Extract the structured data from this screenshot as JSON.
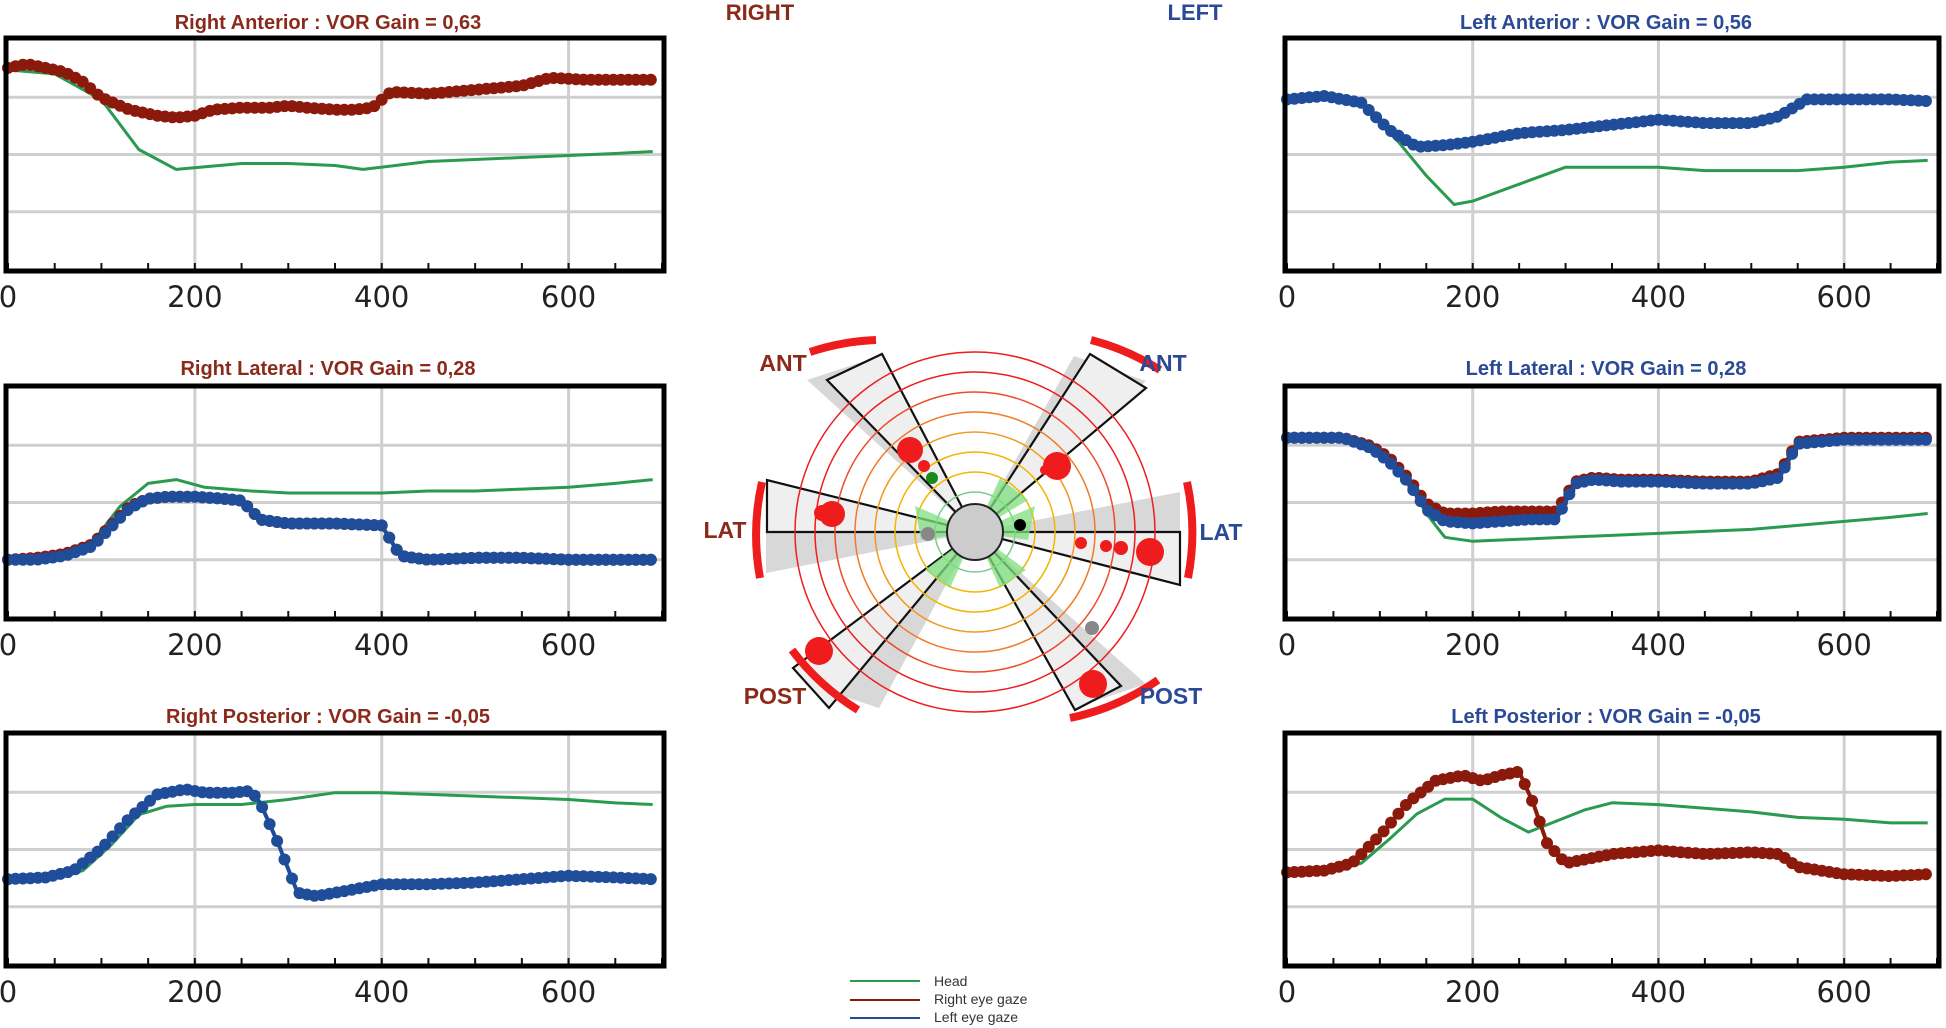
{
  "colors": {
    "head": "#2a9a4f",
    "right_eye": "#8b1a0c",
    "left_eye": "#1f4d9a",
    "right_title": "#8b2a1a",
    "left_title": "#2b4a96",
    "grid": "#cfcfcf",
    "polar_red": "#ee1c1c"
  },
  "labels": {
    "right": "RIGHT",
    "left": "LEFT"
  },
  "polar": {
    "ant_right": "ANT",
    "ant_left": "ANT",
    "lat_right": "LAT",
    "lat_left": "LAT",
    "post_right": "POST",
    "post_left": "POST"
  },
  "legend": {
    "head": "Head",
    "right_eye": "Right eye gaze",
    "left_eye": "Left eye gaze"
  },
  "chart_data": [
    {
      "type": "line",
      "panel": "right-anterior",
      "title": "Right Anterior : VOR Gain = 0,63",
      "xlim": [
        0,
        700
      ],
      "ylim": [
        -100,
        15
      ],
      "xticks": [
        0,
        200,
        400,
        600
      ],
      "series": [
        {
          "name": "Head",
          "x": [
            0,
            50,
            100,
            140,
            180,
            250,
            300,
            350,
            380,
            450,
            500,
            550,
            600,
            650,
            690
          ],
          "y": [
            0,
            -2,
            -15,
            -40,
            -50,
            -47,
            -47,
            -48,
            -50,
            -46,
            -45,
            -44,
            -43,
            -42,
            -41
          ]
        },
        {
          "name": "Right eye gaze",
          "x": [
            0,
            20,
            40,
            60,
            80,
            100,
            130,
            160,
            180,
            200,
            220,
            250,
            280,
            300,
            320,
            350,
            370,
            390,
            410,
            450,
            500,
            550,
            580,
            620,
            650,
            690
          ],
          "y": [
            1,
            3,
            1,
            -1,
            -6,
            -14,
            -20,
            -23,
            -24,
            -23,
            -20,
            -19,
            -19,
            -18,
            -19,
            -20,
            -20,
            -19,
            -11,
            -12,
            -10,
            -8,
            -4,
            -5,
            -5,
            -5
          ]
        }
      ]
    },
    {
      "type": "line",
      "panel": "right-lateral",
      "title": "Right Lateral : VOR Gain = 0,28",
      "xlim": [
        0,
        700
      ],
      "ylim": [
        -30,
        90
      ],
      "xticks": [
        0,
        200,
        400,
        600
      ],
      "series": [
        {
          "name": "Head",
          "x": [
            0,
            30,
            60,
            90,
            120,
            150,
            180,
            210,
            260,
            300,
            350,
            400,
            450,
            500,
            550,
            600,
            650,
            690
          ],
          "y": [
            0,
            1,
            3,
            9,
            28,
            40,
            42,
            38,
            36,
            35,
            35,
            35,
            36,
            36,
            37,
            38,
            40,
            42
          ]
        },
        {
          "name": "Right eye gaze",
          "x": [
            0,
            30,
            60,
            90,
            110,
            130,
            150,
            170,
            200,
            230,
            250,
            270,
            300,
            350,
            400,
            420,
            450,
            500,
            550,
            600,
            650,
            690
          ],
          "y": [
            0,
            1,
            3,
            8,
            18,
            28,
            32,
            33,
            33,
            32,
            31,
            21,
            19,
            19,
            18,
            2,
            0,
            1,
            1,
            0,
            0,
            0
          ]
        },
        {
          "name": "Left eye gaze",
          "x": [
            0,
            30,
            60,
            90,
            110,
            130,
            150,
            170,
            200,
            230,
            250,
            270,
            300,
            350,
            400,
            420,
            450,
            500,
            550,
            600,
            650,
            690
          ],
          "y": [
            0,
            0,
            2,
            7,
            17,
            27,
            32,
            33,
            33,
            32,
            31,
            21,
            19,
            19,
            18,
            2,
            0,
            1,
            1,
            0,
            0,
            0
          ]
        }
      ]
    },
    {
      "type": "line",
      "panel": "right-posterior",
      "title": "Right Posterior : VOR Gain = -0,05",
      "xlim": [
        0,
        700
      ],
      "ylim": [
        -50,
        85
      ],
      "xticks": [
        0,
        200,
        400,
        600
      ],
      "series": [
        {
          "name": "Head",
          "x": [
            0,
            50,
            80,
            110,
            140,
            170,
            200,
            250,
            300,
            350,
            400,
            450,
            500,
            550,
            600,
            650,
            690
          ],
          "y": [
            0,
            1,
            5,
            20,
            38,
            43,
            44,
            44,
            47,
            51,
            51,
            50,
            49,
            48,
            47,
            45,
            44
          ]
        },
        {
          "name": "Left eye gaze",
          "x": [
            0,
            40,
            70,
            100,
            130,
            160,
            190,
            210,
            240,
            260,
            270,
            290,
            310,
            330,
            350,
            400,
            450,
            500,
            550,
            600,
            650,
            690
          ],
          "y": [
            0,
            1,
            5,
            18,
            36,
            50,
            53,
            51,
            51,
            52,
            45,
            20,
            -8,
            -10,
            -8,
            -3,
            -3,
            -2,
            0,
            2,
            1,
            0
          ]
        }
      ]
    },
    {
      "type": "line",
      "panel": "left-anterior",
      "title": "Left Anterior : VOR Gain = 0,56",
      "xlim": [
        0,
        700
      ],
      "ylim": [
        -100,
        35
      ],
      "xticks": [
        0,
        200,
        400,
        600
      ],
      "series": [
        {
          "name": "Head",
          "x": [
            0,
            40,
            80,
            120,
            150,
            180,
            200,
            250,
            300,
            350,
            400,
            450,
            500,
            550,
            600,
            650,
            690
          ],
          "y": [
            0,
            2,
            -3,
            -25,
            -45,
            -62,
            -60,
            -50,
            -40,
            -40,
            -40,
            -42,
            -42,
            -42,
            -40,
            -37,
            -36
          ]
        },
        {
          "name": "Left eye gaze",
          "x": [
            0,
            40,
            80,
            110,
            140,
            170,
            200,
            250,
            300,
            350,
            400,
            450,
            500,
            530,
            560,
            600,
            650,
            690
          ],
          "y": [
            0,
            2,
            -2,
            -18,
            -28,
            -27,
            -25,
            -20,
            -18,
            -15,
            -12,
            -14,
            -14,
            -10,
            0,
            0,
            0,
            -1
          ]
        }
      ]
    },
    {
      "type": "line",
      "panel": "left-lateral",
      "title": "Left Lateral : VOR Gain = 0,28",
      "xlim": [
        0,
        700
      ],
      "ylim": [
        -90,
        25
      ],
      "xticks": [
        0,
        200,
        400,
        600
      ],
      "series": [
        {
          "name": "Head",
          "x": [
            0,
            60,
            90,
            110,
            130,
            150,
            170,
            200,
            250,
            300,
            350,
            400,
            450,
            500,
            550,
            600,
            650,
            690
          ],
          "y": [
            0,
            0,
            -5,
            -12,
            -22,
            -38,
            -50,
            -52,
            -51,
            -50,
            -49,
            -48,
            -47,
            -46,
            -44,
            -42,
            -40,
            -38
          ]
        },
        {
          "name": "Right eye gaze",
          "x": [
            0,
            60,
            90,
            110,
            130,
            150,
            170,
            200,
            230,
            260,
            290,
            310,
            330,
            360,
            400,
            450,
            500,
            530,
            550,
            600,
            650,
            690
          ],
          "y": [
            0,
            0,
            -4,
            -10,
            -20,
            -33,
            -38,
            -38,
            -37,
            -37,
            -37,
            -22,
            -20,
            -21,
            -21,
            -22,
            -22,
            -18,
            -2,
            0,
            0,
            0
          ]
        },
        {
          "name": "Left eye gaze",
          "x": [
            0,
            60,
            90,
            110,
            130,
            150,
            170,
            200,
            230,
            260,
            290,
            310,
            330,
            360,
            400,
            450,
            500,
            530,
            550,
            600,
            650,
            690
          ],
          "y": [
            0,
            0,
            -5,
            -12,
            -22,
            -36,
            -42,
            -43,
            -42,
            -41,
            -41,
            -23,
            -21,
            -22,
            -22,
            -23,
            -23,
            -20,
            -3,
            -1,
            -1,
            -1
          ]
        }
      ]
    },
    {
      "type": "line",
      "panel": "left-posterior",
      "title": "Left Posterior : VOR Gain = -0,05",
      "xlim": [
        0,
        700
      ],
      "ylim": [
        -50,
        75
      ],
      "xticks": [
        0,
        200,
        400,
        600
      ],
      "series": [
        {
          "name": "Head",
          "x": [
            0,
            50,
            80,
            110,
            140,
            170,
            200,
            230,
            260,
            290,
            320,
            350,
            400,
            450,
            500,
            550,
            600,
            650,
            690
          ],
          "y": [
            0,
            1,
            5,
            18,
            32,
            40,
            40,
            30,
            22,
            28,
            34,
            38,
            37,
            35,
            33,
            30,
            29,
            27,
            27
          ]
        },
        {
          "name": "Right eye gaze",
          "x": [
            0,
            40,
            70,
            100,
            130,
            160,
            190,
            210,
            230,
            250,
            265,
            280,
            300,
            320,
            350,
            400,
            450,
            500,
            530,
            550,
            600,
            650,
            690
          ],
          "y": [
            0,
            1,
            5,
            20,
            38,
            50,
            53,
            50,
            53,
            55,
            38,
            16,
            5,
            7,
            10,
            12,
            10,
            11,
            10,
            3,
            -1,
            -2,
            -1
          ]
        }
      ]
    }
  ]
}
